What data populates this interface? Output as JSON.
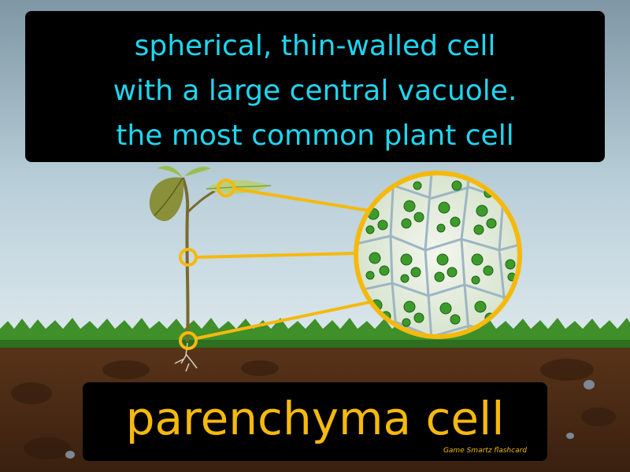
{
  "definition": {
    "lines": [
      "spherical, thin-walled cell",
      "with a large central vacuole.",
      "the most common plant cell"
    ]
  },
  "term": "parenchyma cell",
  "credit": "Game Smartz flashcard",
  "colors": {
    "definition_text": "#1fd6f0",
    "term_text": "#f5b90e",
    "callout": "#f5b90e",
    "sky_top": "#7f96a4",
    "grass": "#3f8f2b",
    "soil": "#4b2a16"
  },
  "icons": [
    "plant-seedling",
    "magnified-cells-circle"
  ]
}
